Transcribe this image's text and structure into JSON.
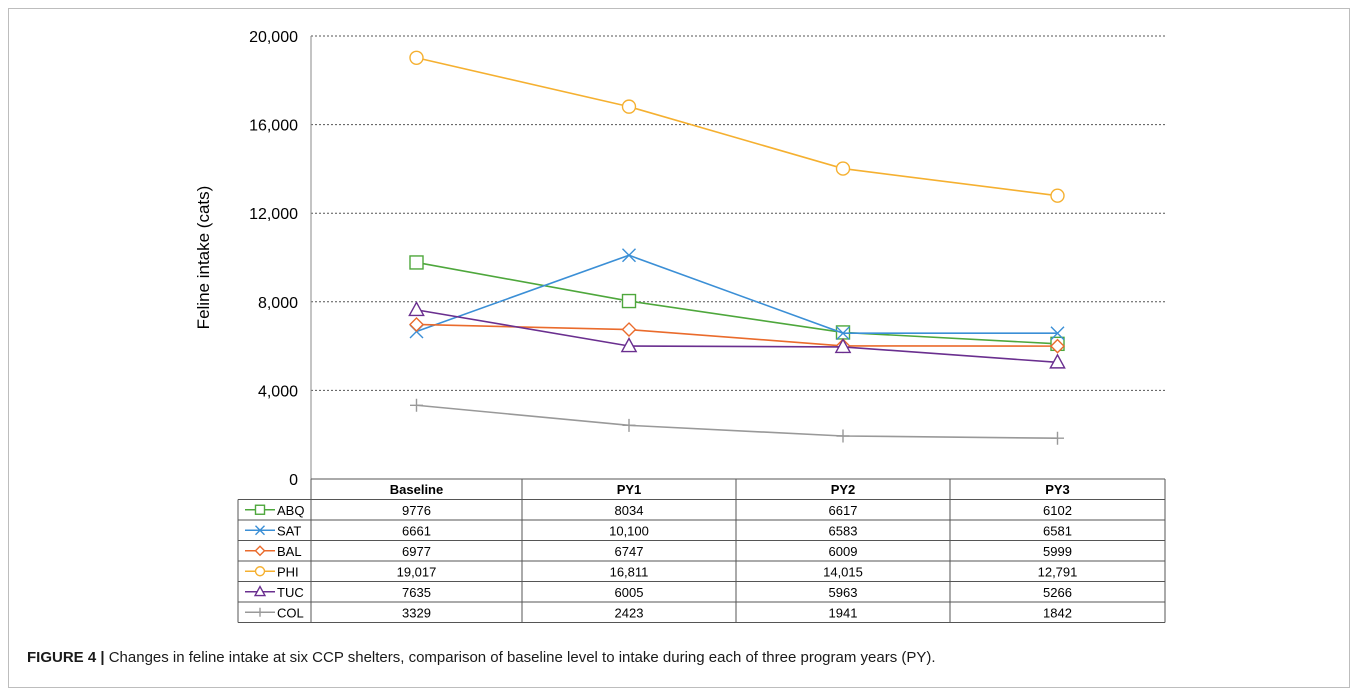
{
  "chart_data": {
    "type": "line",
    "categories": [
      "Baseline",
      "PY1",
      "PY2",
      "PY3"
    ],
    "ylabel": "Feline intake (cats)",
    "ylim": [
      0,
      20000
    ],
    "yticks": [
      0,
      4000,
      8000,
      12000,
      16000,
      20000
    ],
    "ytick_labels": [
      "0",
      "4,000",
      "8,000",
      "12,000",
      "16,000",
      "20,000"
    ],
    "grid": "horizontal dashed",
    "legend": "data table below plot",
    "series": [
      {
        "name": "ABQ",
        "color": "#4ea73c",
        "marker": "square",
        "values": [
          9776,
          8034,
          6617,
          6102
        ],
        "labels": [
          "9776",
          "8034",
          "6617",
          "6102"
        ]
      },
      {
        "name": "SAT",
        "color": "#3b8fd6",
        "marker": "x",
        "values": [
          6661,
          10100,
          6583,
          6581
        ],
        "labels": [
          "6661",
          "10,100",
          "6583",
          "6581"
        ]
      },
      {
        "name": "BAL",
        "color": "#ea6b2c",
        "marker": "diamond",
        "values": [
          6977,
          6747,
          6009,
          5999
        ],
        "labels": [
          "6977",
          "6747",
          "6009",
          "5999"
        ]
      },
      {
        "name": "PHI",
        "color": "#f5b030",
        "marker": "circle",
        "values": [
          19017,
          16811,
          14015,
          12791
        ],
        "labels": [
          "19,017",
          "16,811",
          "14,015",
          "12,791"
        ]
      },
      {
        "name": "TUC",
        "color": "#6a2f8f",
        "marker": "triangle",
        "values": [
          7635,
          6005,
          5963,
          5266
        ],
        "labels": [
          "7635",
          "6005",
          "5963",
          "5266"
        ]
      },
      {
        "name": "COL",
        "color": "#999999",
        "marker": "plus",
        "values": [
          3329,
          2423,
          1941,
          1842
        ],
        "labels": [
          "3329",
          "2423",
          "1941",
          "1842"
        ]
      }
    ]
  },
  "caption": {
    "figure_label": "FIGURE 4 |",
    "text": " Changes in feline intake at six CCP shelters, comparison of baseline level to intake during each of three program years (PY)."
  }
}
